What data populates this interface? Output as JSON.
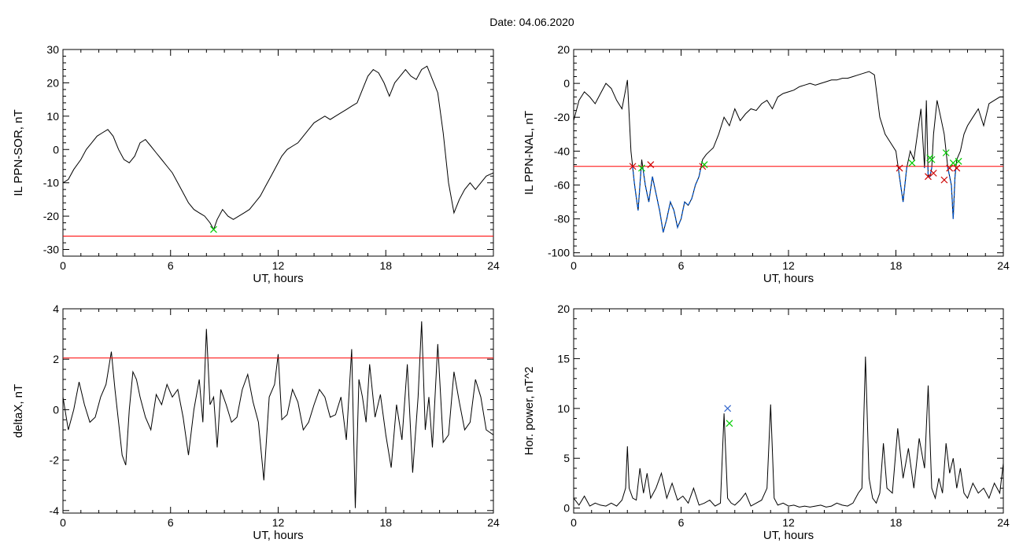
{
  "figure": {
    "title": "Date:  04.06.2020"
  },
  "chart_data": [
    {
      "id": "p1",
      "type": "line",
      "xlabel": "UT, hours",
      "ylabel": "IL PPN-SOR, nT",
      "xlim": [
        0,
        24
      ],
      "ylim": [
        -32,
        30
      ],
      "xticks": [
        0,
        6,
        12,
        18,
        24
      ],
      "yticks": [
        -30,
        -20,
        -10,
        0,
        10,
        20,
        30
      ],
      "grid": false,
      "colors": {
        "series": "#000000",
        "threshold": "#ff0000",
        "marker": "#00cc00"
      },
      "series": [
        {
          "x": [
            0,
            0.3,
            0.6,
            1.0,
            1.3,
            1.6,
            1.9,
            2.2,
            2.5,
            2.8,
            3.1,
            3.4,
            3.7,
            4.0,
            4.3,
            4.6,
            4.9,
            5.2,
            5.5,
            5.8,
            6.1,
            6.4,
            6.7,
            7.0,
            7.3,
            7.6,
            7.9,
            8.2,
            8.4,
            8.6,
            8.9,
            9.2,
            9.5,
            9.8,
            10.1,
            10.4,
            10.7,
            11.0,
            11.3,
            11.6,
            11.9,
            12.2,
            12.5,
            12.8,
            13.1,
            13.4,
            13.7,
            14.0,
            14.3,
            14.6,
            14.9,
            15.2,
            15.5,
            15.8,
            16.1,
            16.4,
            16.7,
            17.0,
            17.3,
            17.6,
            17.9,
            18.2,
            18.5,
            18.8,
            19.1,
            19.4,
            19.7,
            20.0,
            20.3,
            20.6,
            20.9,
            21.2,
            21.5,
            21.8,
            22.1,
            22.4,
            22.7,
            23.0,
            23.3,
            23.6,
            24.0
          ],
          "y": [
            -10,
            -9,
            -6,
            -3,
            0,
            2,
            4,
            5,
            6,
            4,
            0,
            -3,
            -4,
            -2,
            2,
            3,
            1,
            -1,
            -3,
            -5,
            -7,
            -10,
            -13,
            -16,
            -18,
            -19,
            -20,
            -22,
            -24,
            -21,
            -18,
            -20,
            -21,
            -20,
            -19,
            -18,
            -16,
            -14,
            -11,
            -8,
            -5,
            -2,
            0,
            1,
            2,
            4,
            6,
            8,
            9,
            10,
            9,
            10,
            11,
            12,
            13,
            14,
            18,
            22,
            24,
            23,
            20,
            16,
            20,
            22,
            24,
            22,
            21,
            24,
            25,
            21,
            17,
            5,
            -10,
            -19,
            -15,
            -12,
            -10,
            -12,
            -10,
            -8,
            -7
          ]
        }
      ],
      "threshold": -26,
      "markers": [
        {
          "x": 8.4,
          "y": -24,
          "color": "#00cc00"
        }
      ]
    },
    {
      "id": "p2",
      "type": "line",
      "xlabel": "UT, hours",
      "ylabel": "IL PPN-NAL, nT",
      "xlim": [
        0,
        24
      ],
      "ylim": [
        -102,
        20
      ],
      "xticks": [
        0,
        6,
        12,
        18,
        24
      ],
      "yticks": [
        -100,
        -80,
        -60,
        -40,
        -20,
        0,
        20
      ],
      "grid": false,
      "colors": {
        "series": "#000000",
        "below": "#0055cc",
        "threshold": "#ff0000",
        "red_marker": "#cc0000",
        "green_marker": "#00cc00"
      },
      "series": [
        {
          "x": [
            0,
            0.3,
            0.6,
            0.9,
            1.2,
            1.5,
            1.8,
            2.1,
            2.4,
            2.7,
            3.0,
            3.2,
            3.4,
            3.6,
            3.8,
            4.0,
            4.2,
            4.4,
            4.6,
            4.8,
            5.0,
            5.2,
            5.4,
            5.6,
            5.8,
            6.0,
            6.2,
            6.4,
            6.6,
            6.8,
            7.0,
            7.2,
            7.4,
            7.6,
            7.8,
            8.1,
            8.4,
            8.7,
            9.0,
            9.3,
            9.6,
            9.9,
            10.2,
            10.5,
            10.8,
            11.1,
            11.4,
            11.7,
            12.0,
            12.3,
            12.6,
            12.9,
            13.2,
            13.5,
            13.8,
            14.1,
            14.4,
            14.7,
            15.0,
            15.3,
            15.6,
            15.9,
            16.2,
            16.5,
            16.8,
            17.1,
            17.4,
            17.7,
            18.0,
            18.2,
            18.4,
            18.6,
            18.8,
            19.0,
            19.2,
            19.4,
            19.6,
            19.7,
            19.8,
            19.9,
            20.0,
            20.1,
            20.3,
            20.5,
            20.7,
            20.9,
            21.0,
            21.1,
            21.2,
            21.3,
            21.4,
            21.6,
            21.8,
            22.0,
            22.3,
            22.6,
            22.9,
            23.2,
            23.5,
            23.8,
            24.0
          ],
          "y": [
            -22,
            -10,
            -5,
            -8,
            -12,
            -6,
            0,
            -3,
            -10,
            -15,
            2,
            -40,
            -60,
            -75,
            -45,
            -60,
            -70,
            -55,
            -65,
            -75,
            -88,
            -80,
            -70,
            -75,
            -85,
            -80,
            -70,
            -72,
            -68,
            -60,
            -55,
            -45,
            -42,
            -40,
            -38,
            -30,
            -20,
            -25,
            -15,
            -22,
            -18,
            -15,
            -16,
            -12,
            -10,
            -15,
            -8,
            -6,
            -5,
            -4,
            -2,
            -1,
            0,
            -1,
            0,
            1,
            2,
            2,
            3,
            3,
            4,
            5,
            6,
            7,
            5,
            -20,
            -30,
            -35,
            -40,
            -55,
            -70,
            -50,
            -40,
            -45,
            -30,
            -15,
            -50,
            -10,
            -55,
            -55,
            -50,
            -30,
            -10,
            -20,
            -30,
            -50,
            -55,
            -60,
            -80,
            -55,
            -45,
            -40,
            -30,
            -25,
            -20,
            -15,
            -25,
            -12,
            -10,
            -8,
            -8
          ]
        }
      ],
      "threshold": -49,
      "red_markers": [
        {
          "x": 3.3,
          "y": -49
        },
        {
          "x": 4.3,
          "y": -48
        },
        {
          "x": 7.2,
          "y": -49
        },
        {
          "x": 18.2,
          "y": -50
        },
        {
          "x": 19.8,
          "y": -55
        },
        {
          "x": 20.1,
          "y": -53
        },
        {
          "x": 20.7,
          "y": -57
        },
        {
          "x": 21.0,
          "y": -50
        },
        {
          "x": 21.4,
          "y": -50
        }
      ],
      "green_markers": [
        {
          "x": 3.8,
          "y": -50
        },
        {
          "x": 7.3,
          "y": -48
        },
        {
          "x": 18.9,
          "y": -47
        },
        {
          "x": 19.9,
          "y": -44
        },
        {
          "x": 20.0,
          "y": -45
        },
        {
          "x": 20.8,
          "y": -41
        },
        {
          "x": 21.2,
          "y": -47
        },
        {
          "x": 21.5,
          "y": -46
        }
      ]
    },
    {
      "id": "p3",
      "type": "line",
      "xlabel": "UT, hours",
      "ylabel": "deltaX, nT",
      "xlim": [
        0,
        24
      ],
      "ylim": [
        -4.1,
        4
      ],
      "xticks": [
        0,
        6,
        12,
        18,
        24
      ],
      "yticks": [
        -4,
        -2,
        0,
        2,
        4
      ],
      "grid": false,
      "colors": {
        "series": "#000000",
        "threshold": "#ff0000"
      },
      "series": [
        {
          "x": [
            0,
            0.3,
            0.6,
            0.9,
            1.2,
            1.5,
            1.8,
            2.1,
            2.4,
            2.7,
            2.9,
            3.1,
            3.3,
            3.5,
            3.7,
            3.9,
            4.1,
            4.3,
            4.6,
            4.9,
            5.2,
            5.5,
            5.8,
            6.1,
            6.4,
            6.7,
            7.0,
            7.3,
            7.6,
            7.8,
            8.0,
            8.2,
            8.4,
            8.6,
            8.8,
            9.1,
            9.4,
            9.7,
            10.0,
            10.3,
            10.6,
            10.9,
            11.2,
            11.5,
            11.8,
            12.0,
            12.2,
            12.5,
            12.8,
            13.1,
            13.4,
            13.7,
            14.0,
            14.3,
            14.6,
            14.9,
            15.2,
            15.5,
            15.8,
            16.1,
            16.3,
            16.5,
            16.7,
            16.9,
            17.1,
            17.4,
            17.7,
            18.0,
            18.3,
            18.6,
            18.9,
            19.2,
            19.5,
            19.8,
            20.0,
            20.2,
            20.4,
            20.6,
            20.9,
            21.2,
            21.5,
            21.8,
            22.1,
            22.4,
            22.7,
            23.0,
            23.3,
            23.6,
            24.0
          ],
          "y": [
            0.5,
            -0.8,
            0,
            1.1,
            0.2,
            -0.5,
            -0.3,
            0.5,
            1.0,
            2.3,
            0.8,
            -0.5,
            -1.8,
            -2.2,
            0,
            1.5,
            1.2,
            0.5,
            -0.3,
            -0.8,
            0.6,
            0.2,
            1.0,
            0.5,
            0.8,
            -0.3,
            -1.8,
            0,
            1.2,
            -0.5,
            3.2,
            0.2,
            0.5,
            -1.5,
            0.8,
            0.2,
            -0.5,
            -0.3,
            0.8,
            1.4,
            0.3,
            -0.5,
            -2.8,
            0.5,
            1.0,
            2.2,
            -0.4,
            -0.2,
            0.8,
            0.3,
            -0.8,
            -0.5,
            0.2,
            0.8,
            0.5,
            -0.3,
            -0.2,
            0.5,
            -1.2,
            2.4,
            -3.9,
            1.2,
            0.5,
            -0.5,
            1.8,
            -0.3,
            0.6,
            -1.0,
            -2.3,
            0.2,
            -1.2,
            1.8,
            -2.5,
            0.5,
            3.5,
            -0.8,
            0.5,
            -1.5,
            2.6,
            -1.3,
            -1.0,
            1.5,
            0.3,
            -0.8,
            -0.5,
            1.2,
            0.5,
            -0.8,
            -1.0
          ]
        }
      ],
      "threshold": 2.05
    },
    {
      "id": "p4",
      "type": "line",
      "xlabel": "UT, hours",
      "ylabel": "Hor. power, nT^2",
      "xlim": [
        0,
        24
      ],
      "ylim": [
        -0.5,
        20
      ],
      "xticks": [
        0,
        6,
        12,
        18,
        24
      ],
      "yticks": [
        0,
        5,
        10,
        15,
        20
      ],
      "grid": false,
      "colors": {
        "series": "#000000",
        "blue_marker": "#3366cc",
        "green_marker": "#00cc00"
      },
      "series": [
        {
          "x": [
            0,
            0.3,
            0.6,
            0.9,
            1.2,
            1.5,
            1.8,
            2.1,
            2.4,
            2.7,
            2.9,
            3.0,
            3.1,
            3.3,
            3.5,
            3.7,
            3.9,
            4.1,
            4.3,
            4.6,
            4.9,
            5.2,
            5.5,
            5.8,
            6.1,
            6.4,
            6.7,
            7.0,
            7.3,
            7.6,
            7.9,
            8.2,
            8.4,
            8.6,
            8.8,
            9.0,
            9.3,
            9.6,
            9.9,
            10.2,
            10.5,
            10.8,
            11.0,
            11.2,
            11.4,
            11.7,
            12.0,
            12.3,
            12.6,
            12.9,
            13.2,
            13.5,
            13.8,
            14.1,
            14.4,
            14.7,
            15.0,
            15.3,
            15.6,
            15.9,
            16.1,
            16.3,
            16.5,
            16.7,
            16.9,
            17.1,
            17.3,
            17.5,
            17.8,
            18.1,
            18.4,
            18.7,
            19.0,
            19.3,
            19.6,
            19.8,
            20.0,
            20.2,
            20.4,
            20.6,
            20.8,
            21.0,
            21.2,
            21.4,
            21.6,
            21.8,
            22.0,
            22.3,
            22.6,
            22.9,
            23.2,
            23.5,
            23.8,
            24.0
          ],
          "y": [
            1.0,
            0.3,
            1.2,
            0.2,
            0.5,
            0.3,
            0.2,
            0.5,
            0.2,
            0.8,
            2.0,
            6.2,
            2.0,
            1.0,
            0.8,
            4.0,
            1.5,
            3.5,
            1.0,
            2.0,
            3.5,
            1.0,
            2.5,
            0.8,
            1.2,
            0.5,
            2.0,
            0.3,
            0.5,
            0.8,
            0.2,
            0.5,
            9.5,
            1.0,
            0.5,
            0.3,
            0.8,
            1.5,
            0.2,
            0.5,
            0.8,
            2.0,
            10.4,
            1.0,
            0.3,
            0.5,
            0.2,
            0.3,
            0.1,
            0.2,
            0.1,
            0.2,
            0.3,
            0.1,
            0.2,
            0.5,
            0.3,
            0.2,
            0.5,
            1.5,
            2.0,
            15.2,
            3.0,
            1.0,
            0.5,
            1.5,
            6.5,
            2.0,
            1.5,
            8.0,
            3.0,
            6.0,
            2.0,
            7.0,
            4.0,
            12.3,
            2.0,
            1.0,
            3.0,
            1.5,
            6.5,
            3.5,
            5.0,
            2.0,
            4.0,
            1.5,
            1.0,
            2.5,
            1.5,
            2.0,
            1.0,
            2.5,
            1.5,
            4.5
          ]
        }
      ],
      "blue_markers": [
        {
          "x": 8.6,
          "y": 10.0
        }
      ],
      "green_markers": [
        {
          "x": 8.7,
          "y": 8.5
        }
      ]
    }
  ]
}
